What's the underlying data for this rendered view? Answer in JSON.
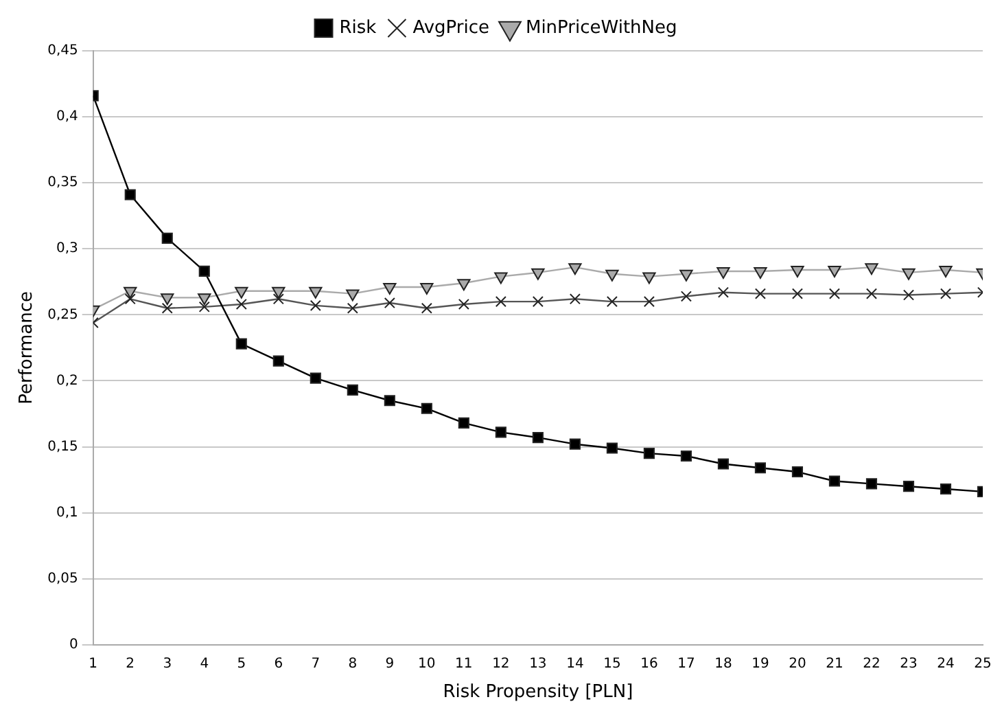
{
  "chart_data": {
    "type": "line",
    "xlabel": "Risk Propensity [PLN]",
    "ylabel": "Performance",
    "x": [
      1,
      2,
      3,
      4,
      5,
      6,
      7,
      8,
      9,
      10,
      11,
      12,
      13,
      14,
      15,
      16,
      17,
      18,
      19,
      20,
      21,
      22,
      23,
      24,
      25
    ],
    "xlim": [
      1,
      25
    ],
    "xticks": [
      1,
      2,
      3,
      4,
      5,
      6,
      7,
      8,
      9,
      10,
      11,
      12,
      13,
      14,
      15,
      16,
      17,
      18,
      19,
      20,
      21,
      22,
      23,
      24,
      25
    ],
    "ylim": [
      0,
      0.45
    ],
    "yticks": [
      {
        "value": 0,
        "label": "0"
      },
      {
        "value": 0.05,
        "label": "0,05"
      },
      {
        "value": 0.1,
        "label": "0,1"
      },
      {
        "value": 0.15,
        "label": "0,15"
      },
      {
        "value": 0.2,
        "label": "0,2"
      },
      {
        "value": 0.25,
        "label": "0,25"
      },
      {
        "value": 0.3,
        "label": "0,3"
      },
      {
        "value": 0.35,
        "label": "0,35"
      },
      {
        "value": 0.4,
        "label": "0,4"
      },
      {
        "value": 0.45,
        "label": "0,45"
      }
    ],
    "grid": "y",
    "legend": "top",
    "line_style": "solid",
    "series": [
      {
        "name": "Risk",
        "color": "#000000",
        "marker": "square",
        "values": [
          0.416,
          0.341,
          0.308,
          0.283,
          0.228,
          0.215,
          0.202,
          0.193,
          0.185,
          0.179,
          0.168,
          0.161,
          0.157,
          0.152,
          0.149,
          0.145,
          0.143,
          0.137,
          0.134,
          0.131,
          0.124,
          0.122,
          0.12,
          0.118,
          0.116
        ]
      },
      {
        "name": "AvgPrice",
        "color": "#555555",
        "marker": "cross",
        "values": [
          0.244,
          0.262,
          0.255,
          0.256,
          0.258,
          0.262,
          0.257,
          0.255,
          0.259,
          0.255,
          0.258,
          0.26,
          0.26,
          0.262,
          0.26,
          0.26,
          0.264,
          0.267,
          0.266,
          0.266,
          0.266,
          0.266,
          0.265,
          0.266,
          0.267
        ]
      },
      {
        "name": "MinPriceWithNeg",
        "color": "#aaaaaa",
        "marker": "triangle",
        "values": [
          0.254,
          0.268,
          0.263,
          0.263,
          0.268,
          0.268,
          0.268,
          0.266,
          0.271,
          0.271,
          0.274,
          0.279,
          0.282,
          0.286,
          0.281,
          0.279,
          0.281,
          0.283,
          0.283,
          0.284,
          0.284,
          0.286,
          0.282,
          0.284,
          0.282
        ]
      }
    ]
  }
}
